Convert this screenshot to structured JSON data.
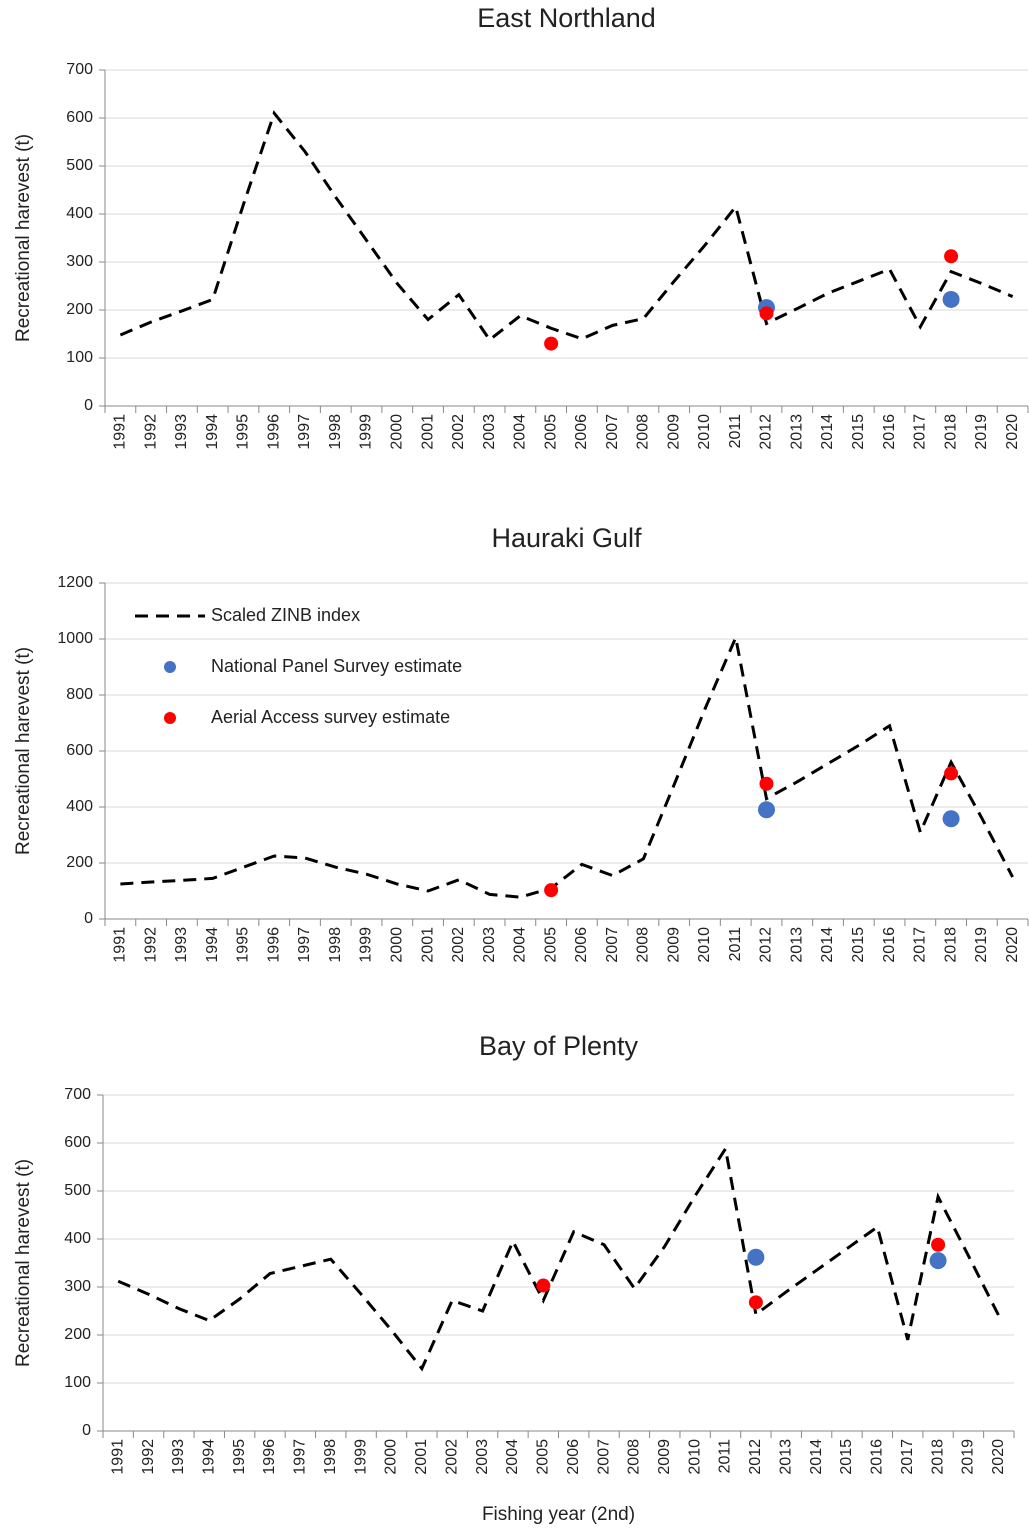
{
  "chart_data": [
    {
      "type": "line",
      "title": "East Northland",
      "y_label": "Recreational harevest (t)",
      "categories": [
        "1991",
        "1992",
        "1993",
        "1994",
        "1995",
        "1996",
        "1997",
        "1998",
        "1999",
        "2000",
        "2001",
        "2002",
        "2003",
        "2004",
        "2005",
        "2006",
        "2007",
        "2008",
        "2009",
        "2010",
        "2011",
        "2012",
        "2013",
        "2014",
        "2015",
        "2016",
        "2017",
        "2018",
        "2019",
        "2020"
      ],
      "ylim": [
        0,
        700
      ],
      "yticks": [
        0,
        100,
        200,
        300,
        400,
        500,
        600,
        700
      ],
      "grid": true,
      "series": [
        {
          "color": "#000000",
          "style": "dashed",
          "values": [
            148,
            175,
            198,
            222,
            420,
            610,
            530,
            435,
            345,
            255,
            180,
            232,
            138,
            188,
            162,
            140,
            168,
            182,
            260,
            335,
            415,
            172,
            203,
            235,
            260,
            285,
            165,
            280,
            255,
            228
          ]
        },
        {
          "color": "#4472c4",
          "style": "marker",
          "values": [
            null,
            null,
            null,
            null,
            null,
            null,
            null,
            null,
            null,
            null,
            null,
            null,
            null,
            null,
            null,
            null,
            null,
            null,
            null,
            null,
            null,
            205,
            null,
            null,
            null,
            null,
            null,
            222,
            null,
            null
          ]
        },
        {
          "color": "#ff0000",
          "style": "marker",
          "values": [
            null,
            null,
            null,
            null,
            null,
            null,
            null,
            null,
            null,
            null,
            null,
            null,
            null,
            null,
            130,
            null,
            null,
            null,
            null,
            null,
            null,
            193,
            null,
            null,
            null,
            null,
            null,
            312,
            null,
            null
          ]
        }
      ]
    },
    {
      "type": "line",
      "title": "Hauraki Gulf",
      "y_label": "Recreational harevest (t)",
      "categories": [
        "1991",
        "1992",
        "1993",
        "1994",
        "1995",
        "1996",
        "1997",
        "1998",
        "1999",
        "2000",
        "2001",
        "2002",
        "2003",
        "2004",
        "2005",
        "2006",
        "2007",
        "2008",
        "2009",
        "2010",
        "2011",
        "2012",
        "2013",
        "2014",
        "2015",
        "2016",
        "2017",
        "2018",
        "2019",
        "2020"
      ],
      "ylim": [
        0,
        1200
      ],
      "yticks": [
        0,
        200,
        400,
        600,
        800,
        1000,
        1200
      ],
      "grid": true,
      "legend": "top-left",
      "series": [
        {
          "name": "Scaled ZINB index",
          "color": "#000000",
          "style": "dashed",
          "values": [
            125,
            132,
            138,
            145,
            185,
            225,
            218,
            185,
            160,
            125,
            100,
            140,
            88,
            78,
            110,
            195,
            155,
            215,
            480,
            750,
            1005,
            430,
            490,
            555,
            620,
            690,
            310,
            560,
            360,
            150
          ]
        },
        {
          "name": "National Panel Survey estimate",
          "color": "#4472c4",
          "style": "marker",
          "values": [
            null,
            null,
            null,
            null,
            null,
            null,
            null,
            null,
            null,
            null,
            null,
            null,
            null,
            null,
            null,
            null,
            null,
            null,
            null,
            null,
            null,
            390,
            null,
            null,
            null,
            null,
            null,
            358,
            null,
            null
          ]
        },
        {
          "name": "Aerial Access survey estimate",
          "color": "#ff0000",
          "style": "marker",
          "values": [
            null,
            null,
            null,
            null,
            null,
            null,
            null,
            null,
            null,
            null,
            null,
            null,
            null,
            null,
            103,
            null,
            null,
            null,
            null,
            null,
            null,
            483,
            null,
            null,
            null,
            null,
            null,
            520,
            null,
            null
          ]
        }
      ]
    },
    {
      "type": "line",
      "title": "Bay of Plenty",
      "y_label": "Recreational harevest (t)",
      "x_label": "Fishing year (2nd)",
      "categories": [
        "1991",
        "1992",
        "1993",
        "1994",
        "1995",
        "1996",
        "1997",
        "1998",
        "1999",
        "2000",
        "2001",
        "2002",
        "2003",
        "2004",
        "2005",
        "2006",
        "2007",
        "2008",
        "2009",
        "2010",
        "2011",
        "2012",
        "2013",
        "2014",
        "2015",
        "2016",
        "2017",
        "2018",
        "2019",
        "2020"
      ],
      "ylim": [
        0,
        700
      ],
      "yticks": [
        0,
        100,
        200,
        300,
        400,
        500,
        600,
        700
      ],
      "grid": true,
      "series": [
        {
          "color": "#000000",
          "style": "dashed",
          "values": [
            312,
            285,
            255,
            230,
            275,
            328,
            343,
            358,
            285,
            210,
            130,
            272,
            250,
            395,
            272,
            415,
            388,
            297,
            385,
            490,
            588,
            243,
            290,
            335,
            380,
            425,
            190,
            488,
            365,
            240
          ]
        },
        {
          "color": "#4472c4",
          "style": "marker",
          "values": [
            null,
            null,
            null,
            null,
            null,
            null,
            null,
            null,
            null,
            null,
            null,
            null,
            null,
            null,
            null,
            null,
            null,
            null,
            null,
            null,
            null,
            362,
            null,
            null,
            null,
            null,
            null,
            355,
            null,
            null
          ]
        },
        {
          "color": "#ff0000",
          "style": "marker",
          "values": [
            null,
            null,
            null,
            null,
            null,
            null,
            null,
            null,
            null,
            null,
            null,
            null,
            null,
            null,
            303,
            null,
            null,
            null,
            null,
            null,
            null,
            268,
            null,
            null,
            null,
            null,
            null,
            388,
            null,
            null
          ]
        }
      ]
    }
  ]
}
